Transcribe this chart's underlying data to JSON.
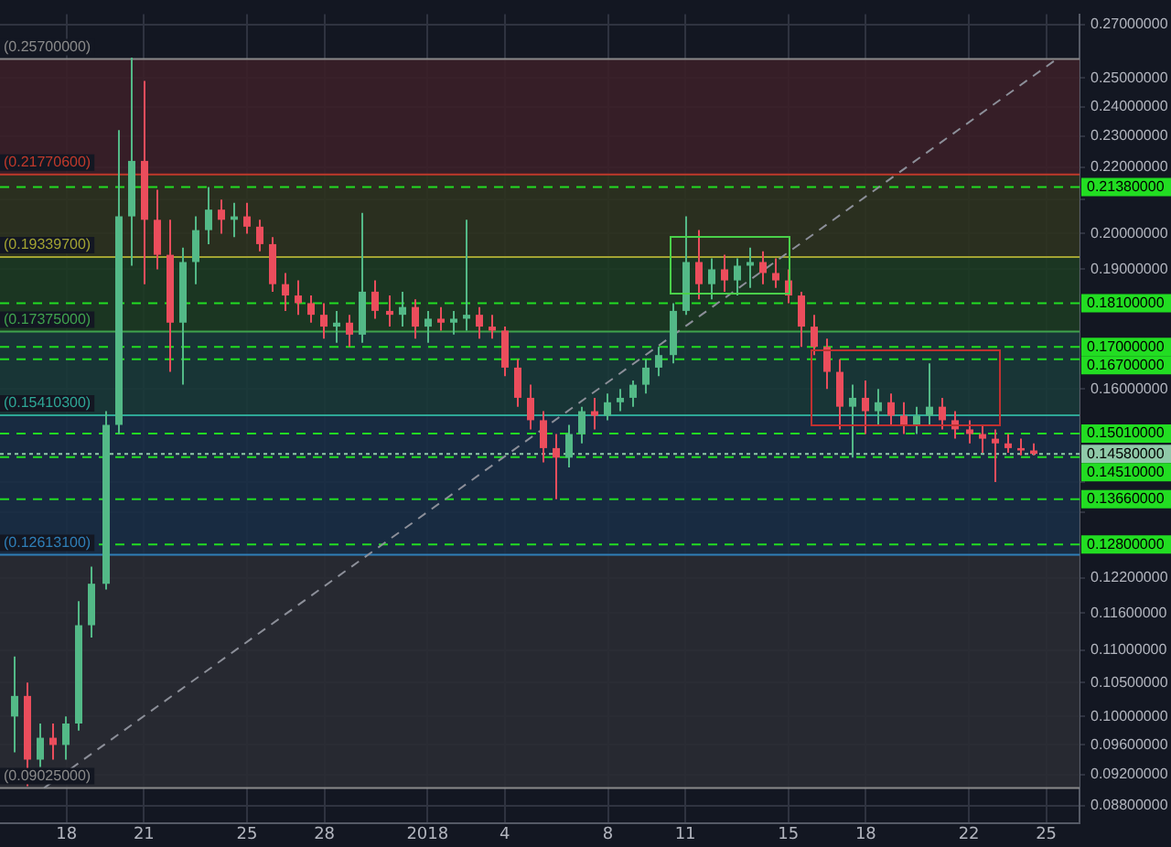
{
  "chart_data": {
    "type": "candlestick",
    "x": [
      "2017-12-16T00:00",
      "2017-12-16T12:00",
      "2017-12-17T00:00",
      "2017-12-17T12:00",
      "2017-12-18T00:00",
      "2017-12-18T12:00",
      "2017-12-19T00:00",
      "2017-12-19T12:00",
      "2017-12-20T00:00",
      "2017-12-20T12:00",
      "2017-12-21T00:00",
      "2017-12-21T12:00",
      "2017-12-22T00:00",
      "2017-12-22T12:00",
      "2017-12-23T00:00",
      "2017-12-23T12:00",
      "2017-12-24T00:00",
      "2017-12-24T12:00",
      "2017-12-25T00:00",
      "2017-12-25T12:00",
      "2017-12-26T00:00",
      "2017-12-26T12:00",
      "2017-12-27T00:00",
      "2017-12-27T12:00",
      "2017-12-28T00:00",
      "2017-12-28T12:00",
      "2017-12-29T00:00",
      "2017-12-29T12:00",
      "2017-12-30T00:00",
      "2017-12-30T12:00",
      "2017-12-31T00:00",
      "2017-12-31T12:00",
      "2018-01-01T00:00",
      "2018-01-01T12:00",
      "2018-01-02T00:00",
      "2018-01-02T12:00",
      "2018-01-03T00:00",
      "2018-01-03T12:00",
      "2018-01-04T00:00",
      "2018-01-04T12:00",
      "2018-01-05T00:00",
      "2018-01-05T12:00",
      "2018-01-06T00:00",
      "2018-01-06T12:00",
      "2018-01-07T00:00",
      "2018-01-07T12:00",
      "2018-01-08T00:00",
      "2018-01-08T12:00",
      "2018-01-09T00:00",
      "2018-01-09T12:00",
      "2018-01-10T00:00",
      "2018-01-10T12:00",
      "2018-01-11T00:00",
      "2018-01-11T12:00",
      "2018-01-12T00:00",
      "2018-01-12T12:00",
      "2018-01-13T00:00",
      "2018-01-13T12:00",
      "2018-01-14T00:00",
      "2018-01-14T12:00",
      "2018-01-15T00:00",
      "2018-01-15T12:00",
      "2018-01-16T00:00",
      "2018-01-16T12:00",
      "2018-01-17T00:00",
      "2018-01-17T12:00",
      "2018-01-18T00:00",
      "2018-01-18T12:00",
      "2018-01-19T00:00",
      "2018-01-19T12:00",
      "2018-01-20T00:00",
      "2018-01-20T12:00",
      "2018-01-21T00:00",
      "2018-01-21T12:00",
      "2018-01-22T00:00",
      "2018-01-22T12:00",
      "2018-01-23T00:00",
      "2018-01-23T12:00",
      "2018-01-24T00:00",
      "2018-01-24T12:00"
    ],
    "ohlc": [
      [
        0.1,
        0.109,
        0.095,
        0.103
      ],
      [
        0.103,
        0.105,
        0.0905,
        0.094
      ],
      [
        0.094,
        0.099,
        0.093,
        0.097
      ],
      [
        0.097,
        0.099,
        0.094,
        0.096
      ],
      [
        0.096,
        0.1,
        0.094,
        0.099
      ],
      [
        0.099,
        0.118,
        0.098,
        0.114
      ],
      [
        0.114,
        0.124,
        0.112,
        0.121
      ],
      [
        0.121,
        0.155,
        0.12,
        0.152
      ],
      [
        0.152,
        0.232,
        0.15,
        0.205
      ],
      [
        0.205,
        0.2575,
        0.191,
        0.222
      ],
      [
        0.222,
        0.249,
        0.186,
        0.204
      ],
      [
        0.204,
        0.213,
        0.19,
        0.194
      ],
      [
        0.194,
        0.204,
        0.164,
        0.176
      ],
      [
        0.176,
        0.196,
        0.161,
        0.192
      ],
      [
        0.192,
        0.205,
        0.186,
        0.201
      ],
      [
        0.201,
        0.2138,
        0.197,
        0.207
      ],
      [
        0.207,
        0.21,
        0.2,
        0.204
      ],
      [
        0.204,
        0.209,
        0.199,
        0.205
      ],
      [
        0.205,
        0.209,
        0.2,
        0.202
      ],
      [
        0.202,
        0.204,
        0.195,
        0.197
      ],
      [
        0.197,
        0.199,
        0.184,
        0.186
      ],
      [
        0.186,
        0.189,
        0.179,
        0.183
      ],
      [
        0.183,
        0.187,
        0.178,
        0.181
      ],
      [
        0.181,
        0.183,
        0.176,
        0.178
      ],
      [
        0.178,
        0.181,
        0.172,
        0.175
      ],
      [
        0.175,
        0.179,
        0.171,
        0.176
      ],
      [
        0.176,
        0.178,
        0.17,
        0.173
      ],
      [
        0.173,
        0.206,
        0.171,
        0.184
      ],
      [
        0.184,
        0.187,
        0.177,
        0.179
      ],
      [
        0.179,
        0.183,
        0.175,
        0.178
      ],
      [
        0.178,
        0.184,
        0.175,
        0.18
      ],
      [
        0.18,
        0.182,
        0.172,
        0.175
      ],
      [
        0.175,
        0.179,
        0.171,
        0.177
      ],
      [
        0.177,
        0.18,
        0.174,
        0.176
      ],
      [
        0.176,
        0.179,
        0.173,
        0.177
      ],
      [
        0.177,
        0.204,
        0.174,
        0.178
      ],
      [
        0.178,
        0.18,
        0.172,
        0.175
      ],
      [
        0.175,
        0.178,
        0.172,
        0.174
      ],
      [
        0.174,
        0.175,
        0.163,
        0.165
      ],
      [
        0.165,
        0.167,
        0.156,
        0.158
      ],
      [
        0.158,
        0.161,
        0.151,
        0.153
      ],
      [
        0.153,
        0.155,
        0.144,
        0.147
      ],
      [
        0.147,
        0.15,
        0.1366,
        0.145
      ],
      [
        0.145,
        0.152,
        0.143,
        0.15
      ],
      [
        0.15,
        0.156,
        0.148,
        0.155
      ],
      [
        0.155,
        0.158,
        0.151,
        0.154
      ],
      [
        0.154,
        0.159,
        0.153,
        0.157
      ],
      [
        0.157,
        0.16,
        0.155,
        0.158
      ],
      [
        0.158,
        0.162,
        0.156,
        0.161
      ],
      [
        0.161,
        0.167,
        0.159,
        0.165
      ],
      [
        0.165,
        0.17,
        0.163,
        0.168
      ],
      [
        0.168,
        0.181,
        0.166,
        0.179
      ],
      [
        0.179,
        0.205,
        0.178,
        0.192
      ],
      [
        0.192,
        0.201,
        0.182,
        0.186
      ],
      [
        0.186,
        0.193,
        0.182,
        0.19
      ],
      [
        0.19,
        0.194,
        0.184,
        0.187
      ],
      [
        0.187,
        0.193,
        0.183,
        0.191
      ],
      [
        0.191,
        0.196,
        0.185,
        0.192
      ],
      [
        0.192,
        0.195,
        0.186,
        0.189
      ],
      [
        0.189,
        0.193,
        0.185,
        0.187
      ],
      [
        0.187,
        0.19,
        0.181,
        0.183
      ],
      [
        0.183,
        0.184,
        0.17,
        0.175
      ],
      [
        0.175,
        0.178,
        0.168,
        0.17
      ],
      [
        0.17,
        0.172,
        0.16,
        0.164
      ],
      [
        0.164,
        0.167,
        0.151,
        0.156
      ],
      [
        0.156,
        0.161,
        0.145,
        0.158
      ],
      [
        0.158,
        0.162,
        0.15,
        0.155
      ],
      [
        0.155,
        0.16,
        0.152,
        0.157
      ],
      [
        0.157,
        0.159,
        0.152,
        0.154
      ],
      [
        0.154,
        0.157,
        0.15,
        0.152
      ],
      [
        0.152,
        0.156,
        0.15,
        0.154
      ],
      [
        0.154,
        0.166,
        0.152,
        0.156
      ],
      [
        0.156,
        0.158,
        0.151,
        0.153
      ],
      [
        0.153,
        0.155,
        0.149,
        0.151
      ],
      [
        0.151,
        0.153,
        0.148,
        0.15
      ],
      [
        0.15,
        0.152,
        0.146,
        0.149
      ],
      [
        0.149,
        0.151,
        0.14,
        0.148
      ],
      [
        0.148,
        0.15,
        0.146,
        0.147
      ],
      [
        0.147,
        0.149,
        0.1455,
        0.1465
      ],
      [
        0.1465,
        0.148,
        0.1455,
        0.1458
      ]
    ],
    "colors": [
      "#53b987",
      "#eb4d5c",
      "#53b987",
      "#eb4d5c",
      "#53b987",
      "#53b987",
      "#53b987",
      "#53b987",
      "#53b987",
      "#53b987",
      "#eb4d5c",
      "#eb4d5c",
      "#eb4d5c",
      "#53b987",
      "#53b987",
      "#53b987",
      "#eb4d5c",
      "#53b987",
      "#eb4d5c",
      "#eb4d5c",
      "#eb4d5c",
      "#eb4d5c",
      "#eb4d5c",
      "#eb4d5c",
      "#eb4d5c",
      "#53b987",
      "#eb4d5c",
      "#53b987",
      "#eb4d5c",
      "#eb4d5c",
      "#53b987",
      "#eb4d5c",
      "#53b987",
      "#eb4d5c",
      "#53b987",
      "#53b987",
      "#eb4d5c",
      "#eb4d5c",
      "#eb4d5c",
      "#eb4d5c",
      "#eb4d5c",
      "#eb4d5c",
      "#eb4d5c",
      "#53b987",
      "#53b987",
      "#eb4d5c",
      "#53b987",
      "#53b987",
      "#53b987",
      "#53b987",
      "#53b987",
      "#53b987",
      "#53b987",
      "#eb4d5c",
      "#53b987",
      "#eb4d5c",
      "#53b987",
      "#53b987",
      "#eb4d5c",
      "#eb4d5c",
      "#eb4d5c",
      "#eb4d5c",
      "#eb4d5c",
      "#eb4d5c",
      "#eb4d5c",
      "#53b987",
      "#eb4d5c",
      "#53b987",
      "#eb4d5c",
      "#eb4d5c",
      "#53b987",
      "#53b987",
      "#eb4d5c",
      "#eb4d5c",
      "#eb4d5c",
      "#eb4d5c",
      "#eb4d5c",
      "#eb4d5c",
      "#eb4d5c",
      "#eb4d5c"
    ],
    "series": [
      {
        "type": "line",
        "x": [
          "2017-12-17T03:00",
          "2018-01-25T10:00"
        ],
        "values": [
          0.09025,
          0.257
        ],
        "color": "#8c8f99",
        "line_style": "dashed"
      }
    ],
    "log": true,
    "ylim": [
      0.0858,
      0.274
    ],
    "yticks": [
      {
        "value": 0.27,
        "label": "0.27000000"
      },
      {
        "value": 0.25,
        "label": "0.25000000"
      },
      {
        "value": 0.24,
        "label": "0.24000000"
      },
      {
        "value": 0.23,
        "label": "0.23000000"
      },
      {
        "value": 0.22,
        "label": "0.22000000"
      },
      {
        "value": 0.21,
        "label": null
      },
      {
        "value": 0.2,
        "label": "0.20000000"
      },
      {
        "value": 0.19,
        "label": "0.19000000"
      },
      {
        "value": 0.16,
        "label": "0.16000000"
      },
      {
        "value": 0.14,
        "label": null
      },
      {
        "value": 0.134,
        "label": null
      },
      {
        "value": 0.122,
        "label": "0.12200000"
      },
      {
        "value": 0.116,
        "label": "0.11600000"
      },
      {
        "value": 0.11,
        "label": "0.11000000"
      },
      {
        "value": 0.105,
        "label": "0.10500000"
      },
      {
        "value": 0.1,
        "label": "0.10000000"
      },
      {
        "value": 0.096,
        "label": "0.09600000"
      },
      {
        "value": 0.092,
        "label": "0.09200000"
      },
      {
        "value": 0.088,
        "label": "0.08800000"
      }
    ],
    "xlim": [
      "2017-12-15T10:00",
      "2018-01-26T07:00"
    ],
    "xticks": [
      {
        "value": "2017-12-18",
        "label": "18"
      },
      {
        "value": "2017-12-21",
        "label": "21"
      },
      {
        "value": "2017-12-25",
        "label": "25"
      },
      {
        "value": "2017-12-28",
        "label": "28"
      },
      {
        "value": "2018-01-01",
        "label": "2018"
      },
      {
        "value": "2018-01-04",
        "label": "4"
      },
      {
        "value": "2018-01-08",
        "label": "8"
      },
      {
        "value": "2018-01-11",
        "label": "11"
      },
      {
        "value": "2018-01-15",
        "label": "15"
      },
      {
        "value": "2018-01-18",
        "label": "18"
      },
      {
        "value": "2018-01-22",
        "label": "22"
      },
      {
        "value": "2018-01-25",
        "label": "25"
      }
    ],
    "bands": [
      {
        "axis": "y",
        "from": 0.217706,
        "to": 0.257,
        "color": "#3b1f28"
      },
      {
        "axis": "y",
        "from": 0.193397,
        "to": 0.217706,
        "color": "#2e321f"
      },
      {
        "axis": "y",
        "from": 0.17375,
        "to": 0.193397,
        "color": "#1d3a22"
      },
      {
        "axis": "y",
        "from": 0.154103,
        "to": 0.17375,
        "color": "#193838"
      },
      {
        "axis": "y",
        "from": 0.126131,
        "to": 0.154103,
        "color": "#1a2e45"
      },
      {
        "axis": "y",
        "from": 0.09025,
        "to": 0.126131,
        "color": "#2a2b33"
      }
    ],
    "ref_lines": [
      {
        "axis": "y",
        "value": 0.257,
        "label": "(0.25700000)",
        "color": "#8a8a8a",
        "line_style": "solid"
      },
      {
        "axis": "y",
        "value": 0.217706,
        "label": "(0.21770600)",
        "color": "#c0392b",
        "line_style": "solid"
      },
      {
        "axis": "y",
        "value": 0.193397,
        "label": "(0.19339700)",
        "color": "#a3a332",
        "line_style": "solid"
      },
      {
        "axis": "y",
        "value": 0.17375,
        "label": "(0.17375000)",
        "color": "#3fa34d",
        "line_style": "solid"
      },
      {
        "axis": "y",
        "value": 0.154103,
        "label": "(0.15410300)",
        "color": "#2ea796",
        "line_style": "solid"
      },
      {
        "axis": "y",
        "value": 0.126131,
        "label": "(0.12613100)",
        "color": "#2f7fb8",
        "line_style": "solid"
      },
      {
        "axis": "y",
        "value": 0.09025,
        "label": "(0.09025000)",
        "color": "#8a8a8a",
        "line_style": "solid"
      },
      {
        "axis": "y",
        "value": 0.2138,
        "label": "0.21380000",
        "color": "#22dd22",
        "line_style": "dashed"
      },
      {
        "axis": "y",
        "value": 0.181,
        "label": "0.18100000",
        "color": "#22dd22",
        "line_style": "dashed"
      },
      {
        "axis": "y",
        "value": 0.17,
        "label": "0.17000000",
        "color": "#22dd22",
        "line_style": "dashed"
      },
      {
        "axis": "y",
        "value": 0.167,
        "label": "0.16700000",
        "color": "#22dd22",
        "line_style": "dashed"
      },
      {
        "axis": "y",
        "value": 0.1501,
        "label": "0.15010000",
        "color": "#22dd22",
        "line_style": "dashed"
      },
      {
        "axis": "y",
        "value": 0.1458,
        "label": "0.14580000",
        "color": "#8fc9a8",
        "line_style": "dotted"
      },
      {
        "axis": "y",
        "value": 0.1451,
        "label": "0.14510000",
        "color": "#22dd22",
        "line_style": "dashed"
      },
      {
        "axis": "y",
        "value": 0.1366,
        "label": "0.13660000",
        "color": "#22dd22",
        "line_style": "dashed"
      },
      {
        "axis": "y",
        "value": 0.128,
        "label": "0.12800000",
        "color": "#22dd22",
        "line_style": "dashed"
      }
    ],
    "grid": true
  }
}
